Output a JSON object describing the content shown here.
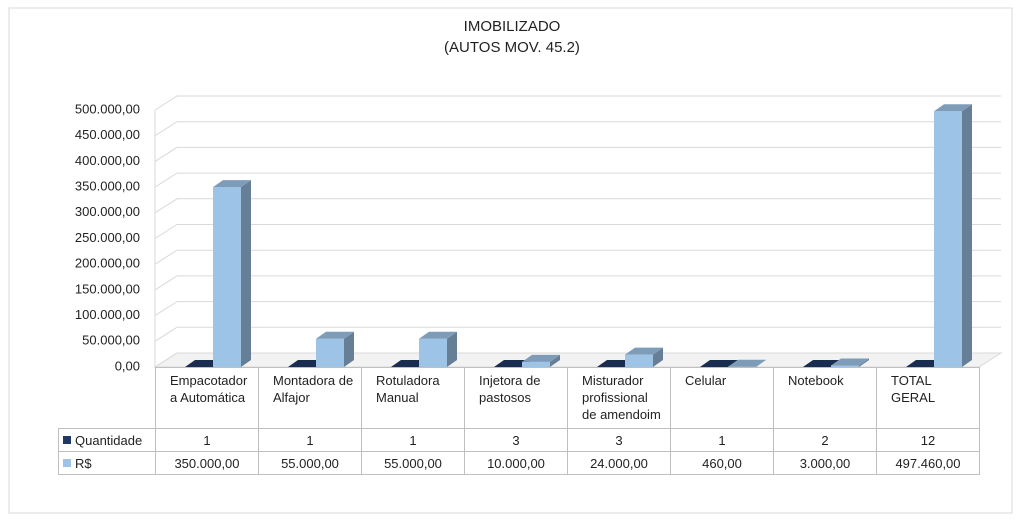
{
  "chart_data": {
    "type": "bar3d",
    "title": "IMOBILIZADO",
    "subtitle": "(AUTOS MOV. 45.2)",
    "categories": [
      "Empacotador a Automática",
      "Montadora de Alfajor",
      "Rotuladora Manual",
      "Injetora de pastosos",
      "Misturador profissional de amendoim",
      "Celular",
      "Notebook",
      "TOTAL GERAL"
    ],
    "series": [
      {
        "name": "Quantidade",
        "color": "#1f3864",
        "values": [
          1,
          1,
          1,
          3,
          3,
          1,
          2,
          12
        ]
      },
      {
        "name": "R$",
        "color": "#9dc3e6",
        "values": [
          350000,
          55000,
          55000,
          10000,
          24000,
          460,
          3000,
          497460
        ],
        "value_labels": [
          "350.000,00",
          "55.000,00",
          "55.000,00",
          "10.000,00",
          "24.000,00",
          "460,00",
          "3.000,00",
          "497.460,00"
        ]
      }
    ],
    "ylim": [
      0,
      500000
    ],
    "yticks": [
      {
        "value": 0,
        "label": "0,00"
      },
      {
        "value": 50000,
        "label": "50.000,00"
      },
      {
        "value": 100000,
        "label": "100.000,00"
      },
      {
        "value": 150000,
        "label": "150.000,00"
      },
      {
        "value": 200000,
        "label": "200.000,00"
      },
      {
        "value": 250000,
        "label": "250.000,00"
      },
      {
        "value": 300000,
        "label": "300.000,00"
      },
      {
        "value": 350000,
        "label": "350.000,00"
      },
      {
        "value": 400000,
        "label": "400.000,00"
      },
      {
        "value": 450000,
        "label": "450.000,00"
      },
      {
        "value": 500000,
        "label": "500.000,00"
      }
    ],
    "grid": true,
    "data_table": true
  }
}
